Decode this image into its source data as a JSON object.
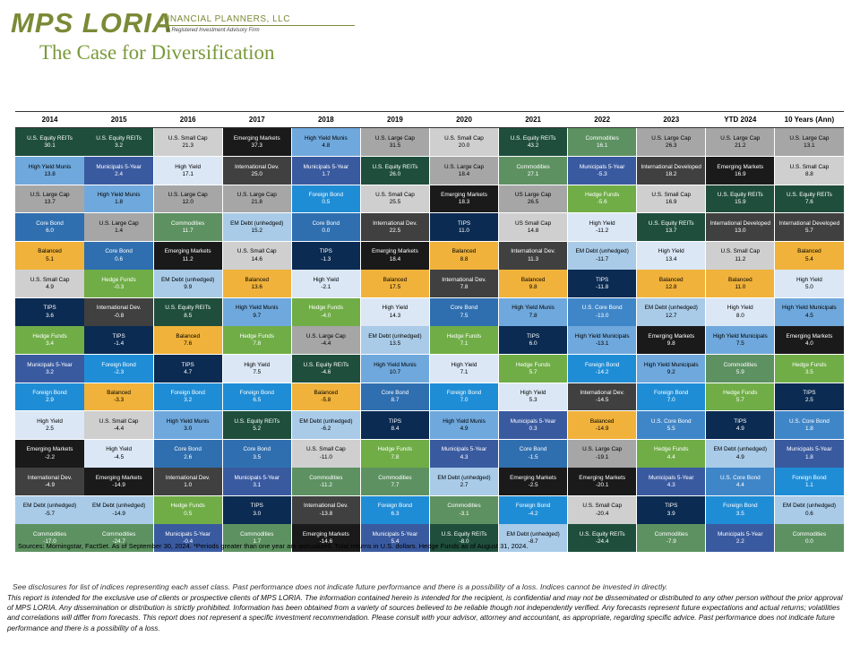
{
  "header": {
    "logo_text": "MPS LORIA",
    "logo_sub": "FINANCIAL PLANNERS, LLC",
    "logo_tag": "A Registered Investment Advisory Firm",
    "title": "The Case for Diversification"
  },
  "colors": {
    "U.S. Equity REITs": "#1f4e3d",
    "High Yield Munis": "#6fa8dc",
    "U.S. Large Cap": "#a6a6a6",
    "Core Bond": "#2f6fb0",
    "Balanced": "#f0b23a",
    "U.S. Small Cap": "#cfcfcf",
    "TIPS": "#0b2b52",
    "Hedge Funds": "#70ad47",
    "Municipals 5-Year": "#3a5aa0",
    "Foreign Bond": "#1f8dd6",
    "Emerging Markets": "#1a1a1a",
    "International Dev.": "#404040",
    "International Developed": "#404040",
    "EM Debt (unhedged)": "#a9cbe8",
    "Commodities": "#5d9161",
    "High Yield": "#dbe7f5",
    "High Yield Municipals": "#6fa8dc",
    "US Large Cap": "#a6a6a6",
    "US Small Cap": "#cfcfcf",
    "U.S. Core Bond": "#3f86c8"
  },
  "chart_data": {
    "type": "table",
    "columns": [
      {
        "header": "2014",
        "cells": [
          {
            "name": "U.S. Equity REITs",
            "value": "30.1"
          },
          {
            "name": "High Yield Munis",
            "value": "13.8"
          },
          {
            "name": "U.S. Large Cap",
            "value": "13.7"
          },
          {
            "name": "Core Bond",
            "value": "6.0"
          },
          {
            "name": "Balanced",
            "value": "5.1"
          },
          {
            "name": "U.S. Small Cap",
            "value": "4.9"
          },
          {
            "name": "TIPS",
            "value": "3.6"
          },
          {
            "name": "Hedge Funds",
            "value": "3.4"
          },
          {
            "name": "Municipals 5-Year",
            "value": "3.2"
          },
          {
            "name": "Foreign Bond",
            "value": "2.9"
          },
          {
            "name": "High Yield",
            "value": "2.5"
          },
          {
            "name": "Emerging Markets",
            "value": "-2.2"
          },
          {
            "name": "International Dev.",
            "value": "-4.9"
          },
          {
            "name": "EM Debt (unhedged)",
            "value": "-5.7"
          },
          {
            "name": "Commodities",
            "value": "-17.0"
          }
        ]
      },
      {
        "header": "2015",
        "cells": [
          {
            "name": "U.S. Equity REITs",
            "value": "3.2"
          },
          {
            "name": "Municipals 5-Year",
            "value": "2.4"
          },
          {
            "name": "High Yield Munis",
            "value": "1.8"
          },
          {
            "name": "U.S. Large Cap",
            "value": "1.4"
          },
          {
            "name": "Core Bond",
            "value": "0.6"
          },
          {
            "name": "Hedge Funds",
            "value": "-0.3"
          },
          {
            "name": "International Dev.",
            "value": "-0.8"
          },
          {
            "name": "TIPS",
            "value": "-1.4"
          },
          {
            "name": "Foreign Bond",
            "value": "-2.3"
          },
          {
            "name": "Balanced",
            "value": "-3.3"
          },
          {
            "name": "U.S. Small Cap",
            "value": "-4.4"
          },
          {
            "name": "High Yield",
            "value": "-4.5"
          },
          {
            "name": "Emerging Markets",
            "value": "-14.9"
          },
          {
            "name": "EM Debt (unhedged)",
            "value": "-14.9"
          },
          {
            "name": "Commodities",
            "value": "-24.7"
          }
        ]
      },
      {
        "header": "2016",
        "cells": [
          {
            "name": "U.S. Small Cap",
            "value": "21.3"
          },
          {
            "name": "High Yield",
            "value": "17.1"
          },
          {
            "name": "U.S. Large Cap",
            "value": "12.0"
          },
          {
            "name": "Commodities",
            "value": "11.7"
          },
          {
            "name": "Emerging Markets",
            "value": "11.2"
          },
          {
            "name": "EM Debt (unhedged)",
            "value": "9.9"
          },
          {
            "name": "U.S. Equity REITs",
            "value": "8.5"
          },
          {
            "name": "Balanced",
            "value": "7.6"
          },
          {
            "name": "TIPS",
            "value": "4.7"
          },
          {
            "name": "Foreign Bond",
            "value": "3.2"
          },
          {
            "name": "High Yield Munis",
            "value": "3.0"
          },
          {
            "name": "Core Bond",
            "value": "2.6"
          },
          {
            "name": "International Dev.",
            "value": "1.0"
          },
          {
            "name": "Hedge Funds",
            "value": "0.5"
          },
          {
            "name": "Municipals 5-Year",
            "value": "-0.4"
          }
        ]
      },
      {
        "header": "2017",
        "cells": [
          {
            "name": "Emerging Markets",
            "value": "37.3"
          },
          {
            "name": "International Dev.",
            "value": "25.0"
          },
          {
            "name": "U.S. Large Cap",
            "value": "21.8"
          },
          {
            "name": "EM Debt (unhedged)",
            "value": "15.2"
          },
          {
            "name": "U.S. Small Cap",
            "value": "14.6"
          },
          {
            "name": "Balanced",
            "value": "13.6"
          },
          {
            "name": "High Yield Munis",
            "value": "9.7"
          },
          {
            "name": "Hedge Funds",
            "value": "7.8"
          },
          {
            "name": "High Yield",
            "value": "7.5"
          },
          {
            "name": "Foreign Bond",
            "value": "6.5"
          },
          {
            "name": "U.S. Equity REITs",
            "value": "5.2"
          },
          {
            "name": "Core Bond",
            "value": "3.5"
          },
          {
            "name": "Municipals 5-Year",
            "value": "3.1"
          },
          {
            "name": "TIPS",
            "value": "3.0"
          },
          {
            "name": "Commodities",
            "value": "1.7"
          }
        ]
      },
      {
        "header": "2018",
        "cells": [
          {
            "name": "High Yield Munis",
            "value": "4.8"
          },
          {
            "name": "Municipals 5-Year",
            "value": "1.7"
          },
          {
            "name": "Foreign Bond",
            "value": "0.5"
          },
          {
            "name": "Core Bond",
            "value": "0.0"
          },
          {
            "name": "TIPS",
            "value": "-1.3"
          },
          {
            "name": "High Yield",
            "value": "-2.1"
          },
          {
            "name": "Hedge Funds",
            "value": "-4.0"
          },
          {
            "name": "U.S. Large Cap",
            "value": "-4.4"
          },
          {
            "name": "U.S. Equity REITs",
            "value": "-4.6"
          },
          {
            "name": "Balanced",
            "value": "-5.8"
          },
          {
            "name": "EM Debt (unhedged)",
            "value": "-6.2"
          },
          {
            "name": "U.S. Small Cap",
            "value": "-11.0"
          },
          {
            "name": "Commodities",
            "value": "-11.2"
          },
          {
            "name": "International Dev.",
            "value": "-13.8"
          },
          {
            "name": "Emerging Markets",
            "value": "-14.6"
          }
        ]
      },
      {
        "header": "2019",
        "cells": [
          {
            "name": "U.S. Large Cap",
            "value": "31.5"
          },
          {
            "name": "U.S. Equity REITs",
            "value": "26.0"
          },
          {
            "name": "U.S. Small Cap",
            "value": "25.5"
          },
          {
            "name": "International Dev.",
            "value": "22.5"
          },
          {
            "name": "Emerging Markets",
            "value": "18.4"
          },
          {
            "name": "Balanced",
            "value": "17.5"
          },
          {
            "name": "High Yield",
            "value": "14.3"
          },
          {
            "name": "EM Debt (unhedged)",
            "value": "13.5"
          },
          {
            "name": "High Yield Munis",
            "value": "10.7"
          },
          {
            "name": "Core Bond",
            "value": "8.7"
          },
          {
            "name": "TIPS",
            "value": "8.4"
          },
          {
            "name": "Hedge Funds",
            "value": "7.8"
          },
          {
            "name": "Commodities",
            "value": "7.7"
          },
          {
            "name": "Foreign Bond",
            "value": "6.3"
          },
          {
            "name": "Municipals 5-Year",
            "value": "5.4"
          }
        ]
      },
      {
        "header": "2020",
        "cells": [
          {
            "name": "U.S. Small Cap",
            "value": "20.0"
          },
          {
            "name": "U.S. Large Cap",
            "value": "18.4"
          },
          {
            "name": "Emerging Markets",
            "value": "18.3"
          },
          {
            "name": "TIPS",
            "value": "11.0"
          },
          {
            "name": "Balanced",
            "value": "8.8"
          },
          {
            "name": "International Dev.",
            "value": "7.8"
          },
          {
            "name": "Core Bond",
            "value": "7.5"
          },
          {
            "name": "Hedge Funds",
            "value": "7.1"
          },
          {
            "name": "High Yield",
            "value": "7.1"
          },
          {
            "name": "Foreign Bond",
            "value": "7.0"
          },
          {
            "name": "High Yield Munis",
            "value": "4.9"
          },
          {
            "name": "Municipals 5-Year",
            "value": "4.3"
          },
          {
            "name": "EM Debt (unhedged)",
            "value": "2.7"
          },
          {
            "name": "Commodities",
            "value": "-3.1"
          },
          {
            "name": "U.S. Equity REITs",
            "value": "-8.0"
          }
        ]
      },
      {
        "header": "2021",
        "cells": [
          {
            "name": "U.S. Equity REITs",
            "value": "43.2"
          },
          {
            "name": "Commodities",
            "value": "27.1"
          },
          {
            "name": "US Large Cap",
            "value": "26.5"
          },
          {
            "name": "US Small Cap",
            "value": "14.8"
          },
          {
            "name": "International Dev.",
            "value": "11.3"
          },
          {
            "name": "Balanced",
            "value": "9.8"
          },
          {
            "name": "High Yield Munis",
            "value": "7.8"
          },
          {
            "name": "TIPS",
            "value": "6.0"
          },
          {
            "name": "Hedge Funds",
            "value": "5.7"
          },
          {
            "name": "High Yield",
            "value": "5.3"
          },
          {
            "name": "Municipals 5-Year",
            "value": "0.3"
          },
          {
            "name": "Core Bond",
            "value": "-1.5"
          },
          {
            "name": "Emerging Markets",
            "value": "-2.5"
          },
          {
            "name": "Foreign Bond",
            "value": "-4.2"
          },
          {
            "name": "EM Debt (unhedged)",
            "value": "-8.7"
          }
        ]
      },
      {
        "header": "2022",
        "cells": [
          {
            "name": "Commodities",
            "value": "16.1"
          },
          {
            "name": "Municipals 5-Year",
            "value": "-5.3"
          },
          {
            "name": "Hedge Funds",
            "value": "-5.6"
          },
          {
            "name": "High Yield",
            "value": "-11.2"
          },
          {
            "name": "EM Debt (unhedged)",
            "value": "-11.7"
          },
          {
            "name": "TIPS",
            "value": "-11.8"
          },
          {
            "name": "U.S. Core Bond",
            "value": "-13.0"
          },
          {
            "name": "High Yield Municipals",
            "value": "-13.1"
          },
          {
            "name": "Foreign Bond",
            "value": "-14.2"
          },
          {
            "name": "International Dev.",
            "value": "-14.5"
          },
          {
            "name": "Balanced",
            "value": "-14.9"
          },
          {
            "name": "U.S. Large Cap",
            "value": "-19.1"
          },
          {
            "name": "Emerging Markets",
            "value": "-20.1"
          },
          {
            "name": "U.S. Small Cap",
            "value": "-20.4"
          },
          {
            "name": "U.S. Equity REITs",
            "value": "-24.4"
          }
        ]
      },
      {
        "header": "2023",
        "cells": [
          {
            "name": "U.S. Large Cap",
            "value": "26.3"
          },
          {
            "name": "International Developed",
            "value": "18.2"
          },
          {
            "name": "U.S. Small Cap",
            "value": "16.9"
          },
          {
            "name": "U.S. Equity REITs",
            "value": "13.7"
          },
          {
            "name": "High Yield",
            "value": "13.4"
          },
          {
            "name": "Balanced",
            "value": "12.8"
          },
          {
            "name": "EM Debt (unhedged)",
            "value": "12.7"
          },
          {
            "name": "Emerging Markets",
            "value": "9.8"
          },
          {
            "name": "High Yield Municipals",
            "value": "9.2"
          },
          {
            "name": "Foreign Bond",
            "value": "7.0"
          },
          {
            "name": "U.S. Core Bond",
            "value": "5.5"
          },
          {
            "name": "Hedge Funds",
            "value": "4.4"
          },
          {
            "name": "Municipals 5-Year",
            "value": "4.3"
          },
          {
            "name": "TIPS",
            "value": "3.9"
          },
          {
            "name": "Commodities",
            "value": "-7.9"
          }
        ]
      },
      {
        "header": "YTD 2024",
        "cells": [
          {
            "name": "U.S. Large Cap",
            "value": "21.2"
          },
          {
            "name": "Emerging Markets",
            "value": "16.9"
          },
          {
            "name": "U.S. Equity REITs",
            "value": "15.9"
          },
          {
            "name": "International Developed",
            "value": "13.0"
          },
          {
            "name": "U.S. Small Cap",
            "value": "11.2"
          },
          {
            "name": "Balanced",
            "value": "11.0"
          },
          {
            "name": "High Yield",
            "value": "8.0"
          },
          {
            "name": "High Yield Municipals",
            "value": "7.5"
          },
          {
            "name": "Commodities",
            "value": "5.9"
          },
          {
            "name": "Hedge Funds",
            "value": "5.7"
          },
          {
            "name": "TIPS",
            "value": "4.9"
          },
          {
            "name": "EM Debt (unhedged)",
            "value": "4.9"
          },
          {
            "name": "U.S. Core Bond",
            "value": "4.4"
          },
          {
            "name": "Foreign Bond",
            "value": "3.5"
          },
          {
            "name": "Municipals 5-Year",
            "value": "2.2"
          }
        ]
      },
      {
        "header": "10 Years (Ann)",
        "cells": [
          {
            "name": "U.S. Large Cap",
            "value": "13.1"
          },
          {
            "name": "U.S. Small Cap",
            "value": "8.8"
          },
          {
            "name": "U.S. Equity REITs",
            "value": "7.6"
          },
          {
            "name": "International Developed",
            "value": "5.7"
          },
          {
            "name": "Balanced",
            "value": "5.4"
          },
          {
            "name": "High Yield",
            "value": "5.0"
          },
          {
            "name": "High Yield Municipals",
            "value": "4.5"
          },
          {
            "name": "Emerging Markets",
            "value": "4.0"
          },
          {
            "name": "Hedge Funds",
            "value": "3.5"
          },
          {
            "name": "TIPS",
            "value": "2.5"
          },
          {
            "name": "U.S. Core Bond",
            "value": "1.8"
          },
          {
            "name": "Municipals 5-Year",
            "value": "1.8"
          },
          {
            "name": "Foreign Bond",
            "value": "1.1"
          },
          {
            "name": "EM Debt (unhedged)",
            "value": "0.6"
          },
          {
            "name": "Commodities",
            "value": "0.0"
          }
        ]
      }
    ]
  },
  "footer": {
    "sources": "Sources: Morningstar, FactSet. As of September 30, 2024. *Periods greater than one year are annualized. Total returns in U.S. dollars. Hedge Funds as of August 31, 2024.",
    "disclaimer1": "See disclosures for list of indices representing each asset class. Past performance does not indicate future performance and there is a possibility of a loss. Indices cannot be invested in directly.",
    "disclaimer2": "This report is intended for the exclusive use of clients or prospective clients of MPS LORIA. The information contained herein is intended for the recipient, is confidential and may not be disseminated or distributed to any other person without the prior approval of MPS LORIA. Any dissemination or distribution is strictly prohibited. Information has been obtained from a variety of sources believed to be reliable though not independently verified. Any forecasts represent future expectations and actual returns; volatilities and correlations will differ from forecasts. This report does not represent a specific investment recommendation. Please consult with your advisor, attorney and accountant, as appropriate, regarding specific advice. Past performance does not indicate future performance and there is a possibility of a loss."
  }
}
